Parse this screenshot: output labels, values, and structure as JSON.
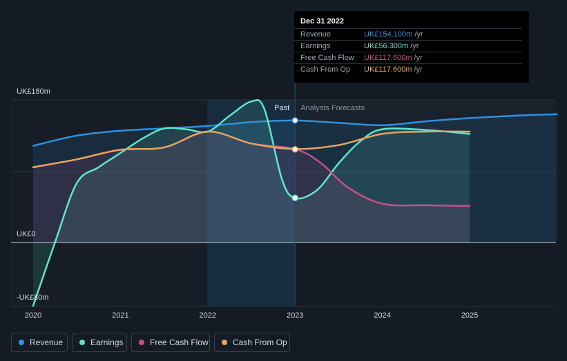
{
  "chart_data": {
    "type": "line",
    "x_ticks": [
      "2020",
      "2021",
      "2022",
      "2023",
      "2024",
      "2025"
    ],
    "y_ticks": [
      "UK£180m",
      "UK£0",
      "-UK£80m"
    ],
    "ylim": [
      -80,
      180
    ],
    "xlim": [
      2019.8,
      2026.0
    ],
    "past_label": "Past",
    "forecast_label": "Analysts Forecasts",
    "divider_x": 2023.0,
    "series": [
      {
        "name": "Revenue",
        "color": "#2f91e0",
        "fill": true,
        "x": [
          2020.0,
          2020.5,
          2021.0,
          2021.5,
          2022.0,
          2022.5,
          2023.0,
          2023.5,
          2024.0,
          2024.5,
          2025.0,
          2025.5,
          2026.0
        ],
        "y": [
          122,
          135,
          141,
          144,
          147,
          152,
          154,
          151,
          148,
          153,
          157,
          160,
          162
        ]
      },
      {
        "name": "Earnings",
        "color": "#5ee7c9",
        "fill": true,
        "x": [
          2020.0,
          2020.25,
          2020.5,
          2020.75,
          2021.0,
          2021.25,
          2021.5,
          2021.75,
          2022.0,
          2022.25,
          2022.5,
          2022.65,
          2022.85,
          2023.0,
          2023.25,
          2023.5,
          2023.75,
          2024.0,
          2024.5,
          2025.0
        ],
        "y": [
          -80,
          0,
          75,
          95,
          113,
          131,
          144,
          143,
          140,
          160,
          178,
          168,
          80,
          56,
          66,
          100,
          128,
          143,
          142,
          137
        ]
      },
      {
        "name": "Free Cash Flow",
        "color": "#c94f87",
        "fill": true,
        "x": [
          2020.0,
          2020.5,
          2021.0,
          2021.5,
          2022.0,
          2022.5,
          2023.0,
          2023.3,
          2023.6,
          2024.0,
          2024.5,
          2025.0
        ],
        "y": [
          95,
          105,
          117,
          120,
          140,
          125,
          118,
          100,
          70,
          49,
          47,
          46
        ]
      },
      {
        "name": "Cash From Op",
        "color": "#e7a45e",
        "fill": false,
        "x": [
          2020.0,
          2020.5,
          2021.0,
          2021.5,
          2022.0,
          2022.5,
          2023.0,
          2023.5,
          2024.0,
          2024.5,
          2025.0
        ],
        "y": [
          95,
          105,
          117,
          120,
          140,
          125,
          118,
          123,
          137,
          140,
          140
        ]
      }
    ],
    "highlight_x": 2023.0,
    "highlight_points": [
      154.1,
      56.3,
      117.6
    ]
  },
  "tooltip": {
    "date": "Dec 31 2022",
    "rows": [
      {
        "name": "Revenue",
        "value": "UK£154.100m",
        "unit": "/yr",
        "color": "#2f91e0"
      },
      {
        "name": "Earnings",
        "value": "UK£56.300m",
        "unit": "/yr",
        "color": "#5ee7c9"
      },
      {
        "name": "Free Cash Flow",
        "value": "UK£117.600m",
        "unit": "/yr",
        "color": "#c94f87"
      },
      {
        "name": "Cash From Op",
        "value": "UK£117.600m",
        "unit": "/yr",
        "color": "#e7a45e"
      }
    ]
  },
  "legend": [
    {
      "label": "Revenue",
      "color": "#2f91e0"
    },
    {
      "label": "Earnings",
      "color": "#5ee7c9"
    },
    {
      "label": "Free Cash Flow",
      "color": "#c94f87"
    },
    {
      "label": "Cash From Op",
      "color": "#e7a45e"
    }
  ],
  "colors": {
    "background": "#151b24",
    "grid": "#2b323c",
    "zero_line": "#c9cdd2"
  }
}
